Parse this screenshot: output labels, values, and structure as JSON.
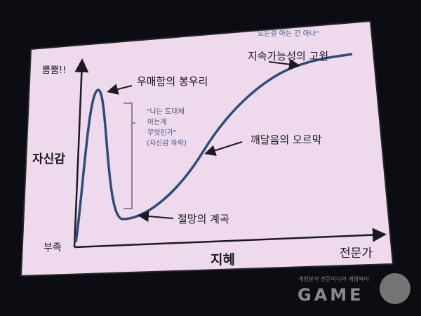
{
  "axes": {
    "y_top": "뿜뿜!!",
    "y_label": "자신감",
    "y_bottom": "부족",
    "x_label": "지혜",
    "x_right": "전문가"
  },
  "annotations": {
    "peak": "우매함의 봉우리",
    "valley": "절망의 계곡",
    "slope": "깨달음의 오르막",
    "plateau": "지속가능성의 고원",
    "plateau_quote": "모든걸 아는 건 아나\"",
    "drop_quote": [
      "\"나는 도대체",
      "아는게",
      "무엇인가\"",
      "(자신감 하락)"
    ]
  },
  "watermark": {
    "tagline": "게임분석 전문미디어 게임와이",
    "logo": "GAME"
  },
  "colors": {
    "slide": "#efd9ec",
    "curve": "#2b4e78",
    "quote": "#3f5a86"
  }
}
